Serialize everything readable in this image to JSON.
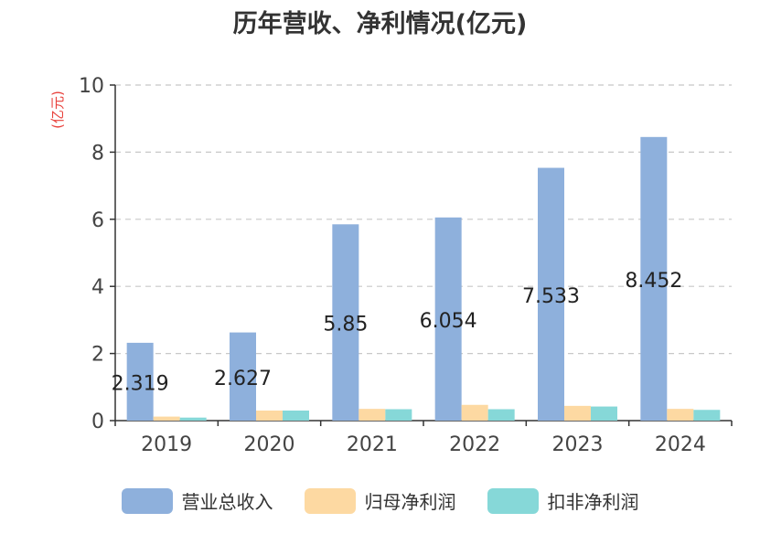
{
  "chart_data": {
    "type": "bar",
    "title": "历年营收、净利情况(亿元)",
    "ylabel": "(亿元)",
    "xlabel": "",
    "ylim": [
      0,
      10
    ],
    "yticks": [
      0,
      2,
      4,
      6,
      8,
      10
    ],
    "grid": true,
    "legend_position": "bottom",
    "categories": [
      "2019",
      "2020",
      "2021",
      "2022",
      "2023",
      "2024"
    ],
    "series": [
      {
        "name": "营业总收入",
        "color": "#8eb0dc",
        "values": [
          2.319,
          2.627,
          5.85,
          6.054,
          7.533,
          8.452
        ],
        "labels": [
          "2.319",
          "2.627",
          "5.85",
          "6.054",
          "7.533",
          "8.452"
        ]
      },
      {
        "name": "归母净利润",
        "color": "#fdd9a2",
        "values": [
          0.12,
          0.3,
          0.35,
          0.47,
          0.44,
          0.35
        ]
      },
      {
        "name": "扣非净利润",
        "color": "#86d8d8",
        "values": [
          0.09,
          0.3,
          0.34,
          0.34,
          0.42,
          0.32
        ]
      }
    ]
  }
}
